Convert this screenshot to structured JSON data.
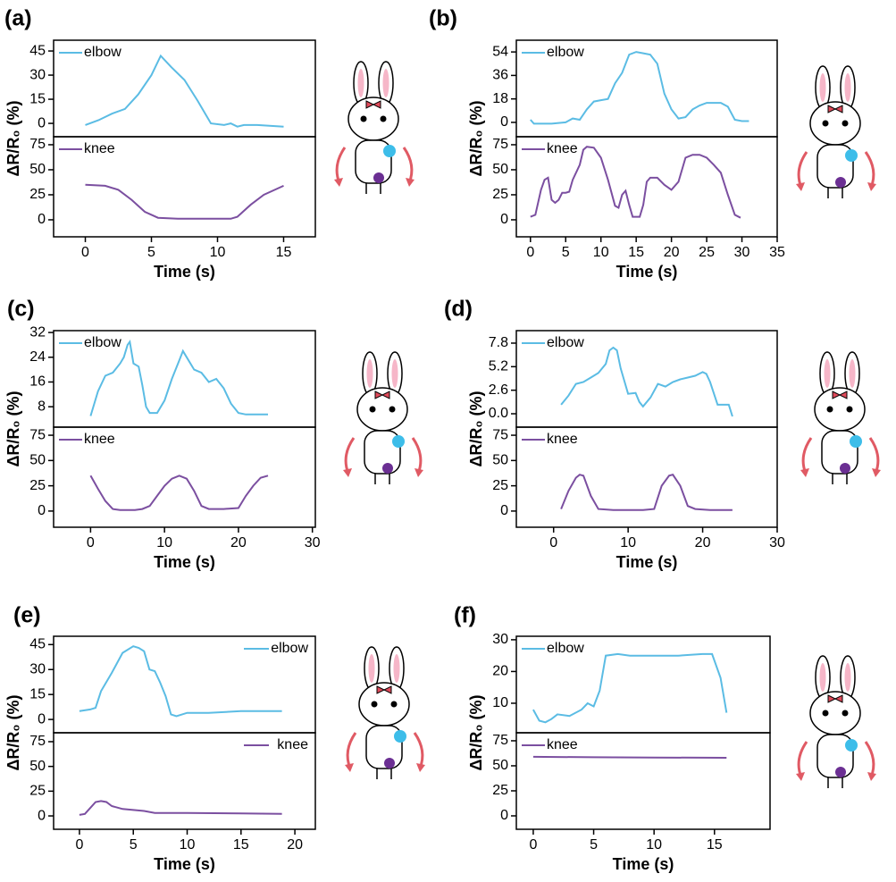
{
  "chart_data": [
    {
      "type": "line",
      "label": "(a)",
      "xlabel": "Time (s)",
      "ylabel": "ΔR/R₀ (%)",
      "xlim": [
        -2.4,
        17.4
      ],
      "xticks": [
        0,
        5,
        10,
        15
      ],
      "plots": [
        {
          "legend": "upper left",
          "ylim": [
            -8.3,
            51.7
          ],
          "yticks": [
            0,
            15,
            30,
            45
          ],
          "x": [
            0,
            1,
            2,
            3,
            4,
            5,
            5.7,
            6.5,
            7.5,
            8.5,
            9.5,
            10.5,
            11,
            11.5,
            12,
            13,
            15
          ],
          "series": [
            {
              "name": "elbow",
              "color": "#5bbce4",
              "values": [
                -1,
                2,
                6,
                9,
                18,
                30,
                42,
                35,
                27,
                14,
                0,
                -1,
                0,
                -2,
                -1,
                -1,
                -2
              ]
            }
          ]
        },
        {
          "legend": "upper left",
          "ylim": [
            -17,
            83
          ],
          "yticks": [
            0,
            25,
            50,
            75
          ],
          "x": [
            0,
            1.5,
            2.5,
            3.5,
            4.5,
            5.5,
            7,
            9,
            11,
            11.5,
            12.5,
            13.5,
            15
          ],
          "series": [
            {
              "name": "knee",
              "color": "#7b4fa0",
              "values": [
                35,
                34,
                30,
                20,
                8,
                2,
                1,
                1,
                1,
                3,
                15,
                25,
                34
              ]
            }
          ]
        }
      ]
    },
    {
      "type": "line",
      "label": "(b)",
      "xlabel": "Time (s)",
      "ylabel": "ΔR/R₀ (%)",
      "xlim": [
        -2,
        35
      ],
      "xticks": [
        0,
        5,
        10,
        15,
        20,
        25,
        30,
        35
      ],
      "plots": [
        {
          "legend": "upper left",
          "ylim": [
            -11,
            63
          ],
          "yticks": [
            0,
            18,
            36,
            54
          ],
          "x": [
            0,
            0.5,
            3,
            5,
            6,
            7,
            8,
            9,
            10,
            11,
            12,
            13,
            14,
            15,
            16,
            17,
            18,
            19,
            20,
            21,
            22,
            23,
            24,
            25,
            26,
            27,
            28,
            29,
            30,
            31
          ],
          "series": [
            {
              "name": "elbow",
              "color": "#5bbce4",
              "values": [
                2,
                -1,
                -1,
                0,
                3,
                2,
                10,
                16,
                17,
                18,
                30,
                38,
                52,
                54,
                53,
                52,
                45,
                22,
                10,
                3,
                4,
                10,
                13,
                15,
                15,
                15,
                12,
                2,
                1,
                1
              ]
            }
          ]
        },
        {
          "legend": "upper left",
          "ylim": [
            -17,
            83
          ],
          "yticks": [
            0,
            25,
            50,
            75
          ],
          "x": [
            0,
            0.7,
            1.5,
            2,
            2.5,
            3,
            3.5,
            4,
            4.5,
            5,
            5.5,
            6,
            7,
            7.5,
            8,
            9,
            10,
            11,
            12,
            12.5,
            13,
            13.5,
            14,
            14.5,
            15.5,
            16,
            16.5,
            17,
            18,
            19,
            20,
            21,
            22,
            23,
            24,
            25,
            26,
            27,
            28,
            29,
            29.8
          ],
          "series": [
            {
              "name": "knee",
              "color": "#7b4fa0",
              "values": [
                3,
                5,
                30,
                40,
                42,
                20,
                17,
                20,
                27,
                27,
                28,
                40,
                55,
                70,
                73,
                72,
                62,
                40,
                14,
                12,
                25,
                29,
                15,
                3,
                3,
                15,
                38,
                42,
                42,
                35,
                30,
                38,
                62,
                65,
                65,
                62,
                55,
                47,
                25,
                5,
                2
              ]
            }
          ]
        }
      ]
    },
    {
      "type": "line",
      "label": "(c)",
      "xlabel": "Time (s)",
      "ylabel": "ΔR/R₀ (%)",
      "xlim": [
        -5,
        30.4
      ],
      "xticks": [
        0,
        10,
        20,
        30
      ],
      "plots": [
        {
          "legend": "upper left",
          "ylim": [
            1.4,
            32.6
          ],
          "yticks": [
            8,
            16,
            24,
            32
          ],
          "x": [
            0,
            1,
            2,
            3,
            4,
            4.5,
            5,
            5.3,
            5.8,
            6.5,
            7,
            7.5,
            8,
            9,
            10,
            11,
            12,
            12.5,
            13,
            14,
            15,
            16,
            17,
            18,
            19,
            20,
            21,
            24
          ],
          "series": [
            {
              "name": "elbow",
              "color": "#5bbce4",
              "values": [
                5,
                13,
                18,
                19,
                22,
                24,
                28,
                29,
                22,
                21,
                15,
                8,
                6,
                6,
                10,
                17,
                23,
                26,
                24,
                20,
                19,
                16,
                17,
                14,
                9,
                6,
                5.5,
                5.5
              ]
            }
          ]
        },
        {
          "legend": "upper left",
          "ylim": [
            -16,
            83
          ],
          "yticks": [
            0,
            25,
            50,
            75
          ],
          "x": [
            0,
            1,
            2,
            3,
            4,
            6,
            7,
            8,
            9,
            10,
            11,
            12,
            13,
            14,
            15,
            16,
            18,
            20,
            21,
            22,
            23,
            24
          ],
          "series": [
            {
              "name": "knee",
              "color": "#7b4fa0",
              "values": [
                35,
                22,
                10,
                2,
                1,
                1,
                2,
                5,
                15,
                25,
                32,
                35,
                32,
                20,
                5,
                2,
                2,
                3,
                15,
                25,
                33,
                35
              ]
            }
          ]
        }
      ]
    },
    {
      "type": "line",
      "label": "(d)",
      "xlabel": "Time (s)",
      "ylabel": "ΔR/R₀ (%)",
      "xlim": [
        -5,
        30
      ],
      "xticks": [
        0,
        10,
        20,
        30
      ],
      "plots": [
        {
          "legend": "upper left",
          "ylim": [
            -1.48,
            9.18
          ],
          "yticks": [
            {
              "value": 0,
              "label": "0.0"
            },
            2.6,
            5.2,
            7.8
          ],
          "x": [
            1,
            2,
            3,
            4,
            5,
            6,
            7,
            7.5,
            8,
            8.5,
            9,
            10,
            11,
            11.5,
            12,
            13,
            14,
            15,
            16,
            17,
            18,
            19,
            20,
            20.5,
            21,
            22,
            23,
            23.5,
            24
          ],
          "series": [
            {
              "name": "elbow",
              "color": "#5bbce4",
              "values": [
                1,
                2,
                3.3,
                3.5,
                4,
                4.5,
                5.5,
                7,
                7.3,
                7,
                5,
                2.2,
                2.3,
                1.3,
                0.8,
                1.8,
                3.3,
                3,
                3.5,
                3.8,
                4,
                4.2,
                4.6,
                4.4,
                3.5,
                1,
                1,
                1,
                -0.3
              ]
            }
          ]
        },
        {
          "legend": "upper left",
          "ylim": [
            -16,
            83
          ],
          "yticks": [
            0,
            25,
            50,
            75
          ],
          "x": [
            1,
            2,
            3,
            3.5,
            4,
            5,
            6,
            8,
            12,
            13.5,
            14.5,
            15.5,
            16,
            17,
            18,
            19,
            21,
            24
          ],
          "series": [
            {
              "name": "knee",
              "color": "#7b4fa0",
              "values": [
                2,
                20,
                33,
                36,
                35,
                15,
                2,
                1,
                1,
                2,
                25,
                35,
                36,
                25,
                5,
                2,
                1,
                1
              ]
            }
          ]
        }
      ]
    },
    {
      "type": "line",
      "label": "(e)",
      "xlabel": "Time (s)",
      "ylabel": "ΔR/R₀ (%)",
      "xlim": [
        -2.4,
        21.9
      ],
      "xticks": [
        0,
        5,
        10,
        15,
        20
      ],
      "plots": [
        {
          "legend": "upper right",
          "ylim": [
            -8,
            50
          ],
          "yticks": [
            0,
            15,
            30,
            45
          ],
          "x": [
            0,
            1,
            1.5,
            2,
            3,
            4,
            5,
            5.5,
            6,
            6.5,
            7,
            7.5,
            8,
            8.5,
            9,
            10,
            12,
            15,
            17,
            18.8
          ],
          "series": [
            {
              "name": "elbow",
              "color": "#5bbce4",
              "values": [
                5,
                6,
                7,
                17,
                28,
                40,
                44,
                43,
                41,
                30,
                29,
                22,
                14,
                3,
                2,
                4,
                4,
                5,
                5,
                5
              ]
            }
          ]
        },
        {
          "legend": "upper right",
          "ylim": [
            -13.5,
            84
          ],
          "yticks": [
            0,
            25,
            50,
            75
          ],
          "x": [
            0,
            0.5,
            1,
            1.5,
            2,
            2.5,
            3,
            4,
            5,
            6,
            7,
            10,
            15,
            18.8
          ],
          "series": [
            {
              "name": "knee",
              "color": "#7b4fa0",
              "values": [
                1,
                2,
                8,
                14,
                15,
                14,
                10,
                7,
                6,
                5,
                3,
                3,
                2.5,
                2
              ]
            }
          ]
        }
      ]
    },
    {
      "type": "line",
      "label": "(f)",
      "xlabel": "Time (s)",
      "ylabel": "ΔR/R₀ (%)",
      "xlim": [
        -1.4,
        19.6
      ],
      "xticks": [
        0,
        5,
        10,
        15
      ],
      "plots": [
        {
          "legend": "upper left",
          "ylim": [
            0.7,
            31.1
          ],
          "yticks": [
            10,
            20,
            30
          ],
          "x": [
            0,
            0.5,
            1,
            1.5,
            2,
            3,
            4,
            4.5,
            5,
            5.5,
            6,
            7,
            8,
            10,
            12,
            14,
            14.8,
            15.5,
            16
          ],
          "series": [
            {
              "name": "elbow",
              "color": "#5bbce4",
              "values": [
                8,
                4.5,
                4,
                5,
                6.5,
                6,
                8,
                10,
                9,
                14,
                25,
                25.5,
                25,
                25,
                25,
                25.5,
                25.5,
                18,
                7
              ]
            }
          ]
        },
        {
          "legend": "upper left",
          "ylim": [
            -13.4,
            83
          ],
          "yticks": [
            0,
            25,
            50,
            75
          ],
          "x": [
            0,
            5,
            10,
            16
          ],
          "series": [
            {
              "name": "knee",
              "color": "#7b4fa0",
              "values": [
                59,
                58.5,
                58.3,
                58
              ]
            }
          ]
        }
      ]
    }
  ]
}
